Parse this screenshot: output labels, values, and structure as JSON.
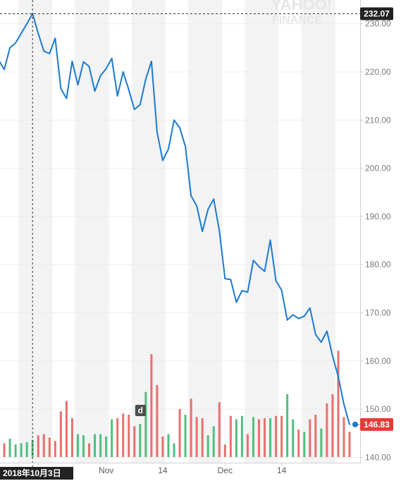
{
  "watermark": {
    "line1": "YAHOO!",
    "line2": "FINANCE"
  },
  "crosshair": {
    "date_label": "2018年10月3日",
    "price_label": "232.07"
  },
  "last_price": {
    "label": "146.83",
    "value": 146.83
  },
  "dividend_marker": {
    "label": "d",
    "session_index": 25
  },
  "colors": {
    "line": "#1a7ad0",
    "volume_up": "#4fbf7f",
    "volume_down": "#e8706c",
    "price_tag_dark": "#222222",
    "price_tag_red": "#e83a3a",
    "band": "#f3f3f3",
    "grid": "#ececec"
  },
  "chart_data": {
    "type": "line",
    "y_axis": {
      "ylim": [
        140,
        235
      ],
      "ticks": [
        140,
        150,
        160,
        170,
        180,
        190,
        200,
        210,
        220,
        230
      ],
      "tick_labels": [
        "140.00",
        "150.00",
        "160.00",
        "170.00",
        "180.00",
        "190.00",
        "200.00",
        "210.00",
        "220.00",
        "230.00"
      ]
    },
    "x_axis": {
      "ticks": [
        {
          "session_index": 7,
          "label": "14"
        },
        {
          "session_index": 19,
          "label": "Nov"
        },
        {
          "session_index": 29,
          "label": "14"
        },
        {
          "session_index": 40,
          "label": "Dec"
        },
        {
          "session_index": 50,
          "label": "14"
        }
      ]
    },
    "price": [
      222.5,
      220.5,
      225,
      226,
      228,
      230,
      232.07,
      228,
      224.3,
      223.8,
      227,
      216.5,
      214.5,
      222.2,
      217.3,
      222.1,
      221.1,
      216,
      219.2,
      220.7,
      222.8,
      215,
      220,
      216.3,
      212.2,
      213.2,
      218.5,
      222.2,
      207.5,
      201.6,
      204,
      210,
      208.4,
      204.5,
      194.3,
      192.2,
      186.9,
      191.5,
      193.6,
      187,
      177.1,
      176.9,
      172.2,
      174.6,
      174.3,
      180.9,
      179.6,
      178.6,
      185.1,
      176.6,
      174.7,
      168.5,
      169.6,
      168.8,
      169.3,
      171,
      165.5,
      163.9,
      166.2,
      161,
      156.8,
      151,
      146.83
    ],
    "volume": [
      0.12,
      0.12,
      0.16,
      0.11,
      0.12,
      0.13,
      0.15,
      0.19,
      0.2,
      0.17,
      0.14,
      0.4,
      0.49,
      0.34,
      0.2,
      0.19,
      0.12,
      0.2,
      0.2,
      0.18,
      0.33,
      0.34,
      0.38,
      0.37,
      0.27,
      0.29,
      0.57,
      0.9,
      0.63,
      0.18,
      0.2,
      0.12,
      0.42,
      0.37,
      0.51,
      0.35,
      0.34,
      0.19,
      0.27,
      0.48,
      0.11,
      0.36,
      0.33,
      0.36,
      0.2,
      0.35,
      0.33,
      0.34,
      0.34,
      0.36,
      0.36,
      0.55,
      0.33,
      0.24,
      0.22,
      0.33,
      0.37,
      0.25,
      0.47,
      0.55,
      0.93,
      0.35,
      0.22
    ],
    "volume_up": [
      true,
      false,
      true,
      true,
      true,
      true,
      true,
      false,
      false,
      false,
      false,
      false,
      false,
      false,
      true,
      true,
      false,
      true,
      true,
      true,
      true,
      false,
      false,
      false,
      false,
      true,
      true,
      false,
      false,
      false,
      true,
      true,
      false,
      true,
      false,
      false,
      false,
      true,
      true,
      false,
      false,
      false,
      true,
      true,
      false,
      true,
      false,
      false,
      true,
      false,
      false,
      true,
      true,
      false,
      true,
      false,
      false,
      true,
      false,
      false,
      false,
      false,
      false
    ],
    "price_line_series": "price",
    "volume_series": "volume",
    "highlight": {
      "session_index": 6,
      "value": 232.07
    },
    "legend": "none",
    "grid": true
  }
}
